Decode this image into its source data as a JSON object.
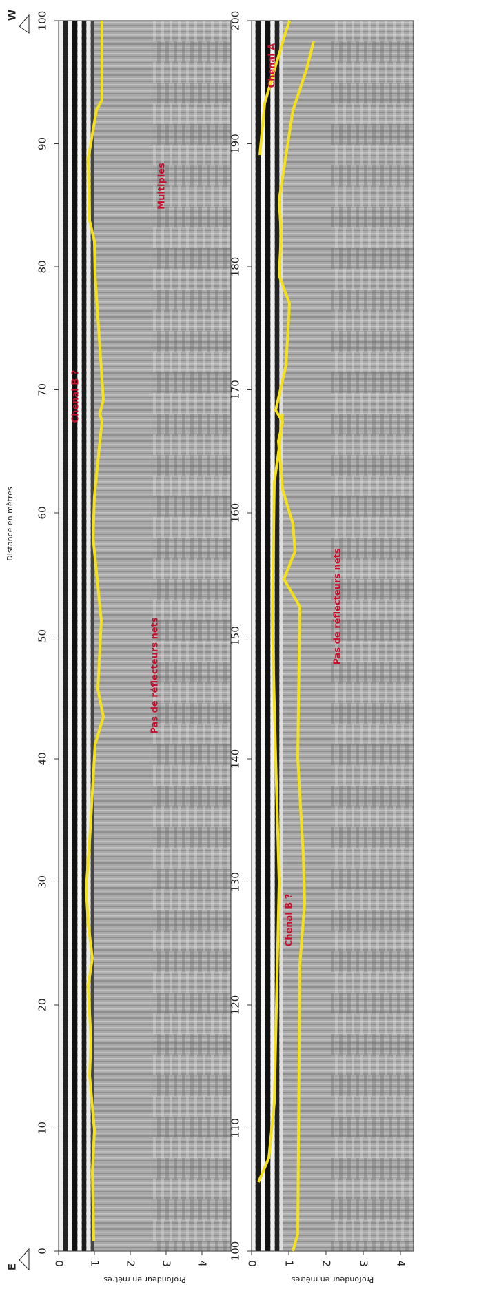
{
  "figure": {
    "start_marker": "E",
    "end_marker": "W",
    "distance_axis_label": "Distance en mètres",
    "panels": [
      {
        "distance_ticks": [
          0,
          10,
          20,
          30,
          40,
          50,
          60,
          70,
          80,
          90,
          100
        ],
        "depth_ticks": [
          0,
          1,
          2,
          3,
          4
        ],
        "depth_axis_label": "Profondeur en mètres",
        "annotations": [
          "Chenal B ?",
          "Multiples",
          "Pas de réflecteurs nets"
        ]
      },
      {
        "distance_ticks": [
          100,
          110,
          120,
          130,
          140,
          150,
          160,
          170,
          180,
          190,
          200
        ],
        "depth_ticks": [
          0,
          1,
          2,
          3,
          4
        ],
        "depth_axis_label": "Profondeur en mètres",
        "annotations": [
          "Chenal A",
          "Chenal B ?",
          "Pas de réflecteurs nets"
        ]
      }
    ]
  }
}
